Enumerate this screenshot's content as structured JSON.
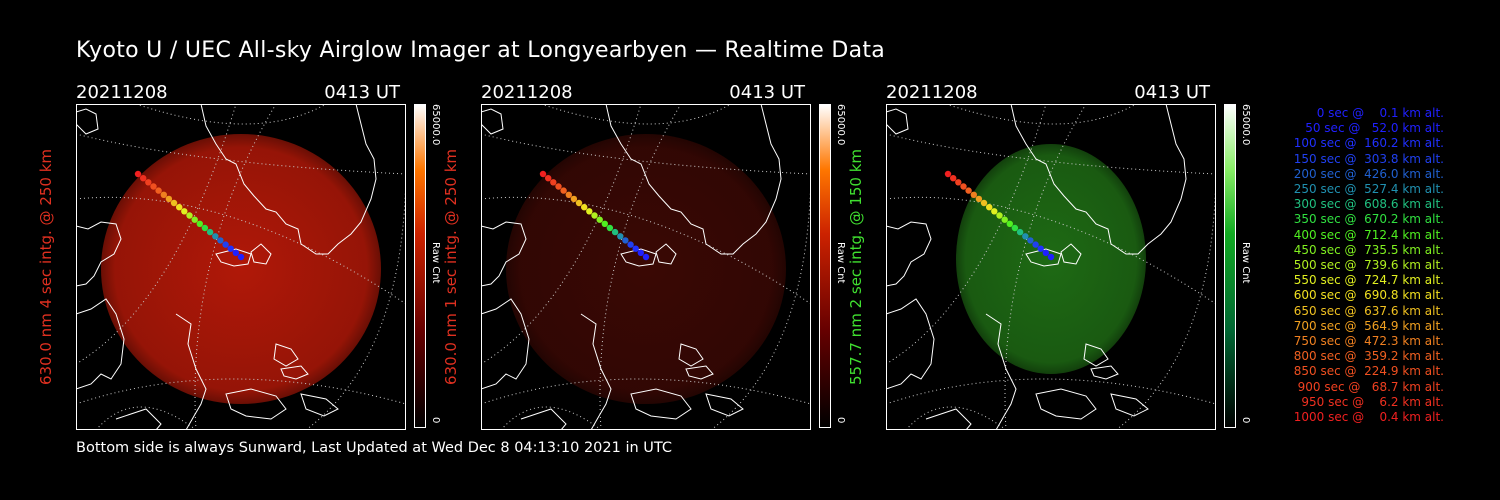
{
  "title": "Kyoto U / UEC All-sky Airglow Imager at Longyearbyen — Realtime Data",
  "footer": "Bottom side is always Sunward, Last Updated at Wed Dec  8 04:13:10 2021 in UTC",
  "panels": [
    {
      "date": "20211208",
      "time": "0413 UT",
      "ylabel": "630.0 nm 4 sec intg. @ 250 km",
      "label_color": "#e03020",
      "cb_max": "65000.0",
      "cb_unit": "Raw Cnt",
      "cb_min": "0",
      "glow": "#b01808"
    },
    {
      "date": "20211208",
      "time": "0413 UT",
      "ylabel": "630.0 nm 1 sec intg. @ 250 km",
      "label_color": "#e03020",
      "cb_max": "65000.0",
      "cb_unit": "Raw Cnt",
      "cb_min": "0",
      "glow": "#3a0804"
    },
    {
      "date": "20211208",
      "time": "0413 UT",
      "ylabel": "557.7 nm 2 sec intg. @ 150 km",
      "label_color": "#40e030",
      "cb_max": "65000.0",
      "cb_unit": "Raw Cnt",
      "cb_min": "0",
      "glow": "#1e6a14"
    }
  ],
  "legend": [
    {
      "text": "0 sec @    0.1 km alt.",
      "color": "#2020ff"
    },
    {
      "text": "50 sec @   52.0 km alt.",
      "color": "#2020ff"
    },
    {
      "text": "100 sec @  160.2 km alt.",
      "color": "#2030ff"
    },
    {
      "text": "150 sec @  303.8 km alt.",
      "color": "#2040f0"
    },
    {
      "text": "200 sec @  426.0 km alt.",
      "color": "#2060d0"
    },
    {
      "text": "250 sec @  527.4 km alt.",
      "color": "#2090b0"
    },
    {
      "text": "300 sec @  608.6 km alt.",
      "color": "#20c080"
    },
    {
      "text": "350 sec @  670.2 km alt.",
      "color": "#30e040"
    },
    {
      "text": "400 sec @  712.4 km alt.",
      "color": "#50f020"
    },
    {
      "text": "450 sec @  735.5 km alt.",
      "color": "#80f020"
    },
    {
      "text": "500 sec @  739.6 km alt.",
      "color": "#b0f020"
    },
    {
      "text": "550 sec @  724.7 km alt.",
      "color": "#e0f020"
    },
    {
      "text": "600 sec @  690.8 km alt.",
      "color": "#f0e020"
    },
    {
      "text": "650 sec @  637.6 km alt.",
      "color": "#f0c020"
    },
    {
      "text": "700 sec @  564.9 km alt.",
      "color": "#f0a020"
    },
    {
      "text": "750 sec @  472.3 km alt.",
      "color": "#f08020"
    },
    {
      "text": "800 sec @  359.2 km alt.",
      "color": "#f06020"
    },
    {
      "text": "850 sec @  224.9 km alt.",
      "color": "#f05020"
    },
    {
      "text": "900 sec @   68.7 km alt.",
      "color": "#f04020"
    },
    {
      "text": "950 sec @    6.2 km alt.",
      "color": "#f03020"
    },
    {
      "text": "1000 sec @    0.4 km alt.",
      "color": "#f02020"
    }
  ]
}
